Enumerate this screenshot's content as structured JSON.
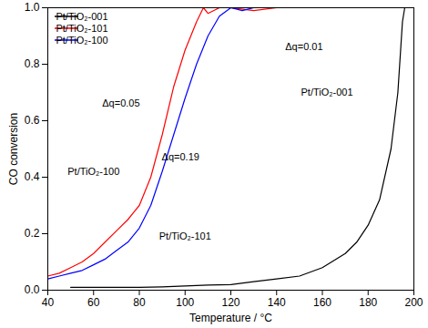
{
  "chart_data": {
    "type": "line",
    "xlabel": "Temperature / °C",
    "ylabel": "CO conversion",
    "xlim": [
      40,
      200
    ],
    "xticks": [
      40,
      60,
      80,
      100,
      120,
      140,
      160,
      180,
      200
    ],
    "ylim": [
      0,
      1
    ],
    "yticks": [
      {
        "value": 0,
        "label": "0.0"
      },
      0.2,
      0.4,
      0.6,
      0.8,
      {
        "value": 1,
        "label": "1.0"
      }
    ],
    "grid": false,
    "legend": "top-left",
    "series": [
      {
        "name": "Pt/TiO₂-001",
        "color": "#000000",
        "x": [
          50,
          60,
          70,
          80,
          90,
          100,
          110,
          120,
          130,
          140,
          150,
          160,
          170,
          175,
          180,
          185,
          190,
          193,
          195,
          196,
          200
        ],
        "values": [
          0.01,
          0.01,
          0.01,
          0.01,
          0.012,
          0.015,
          0.018,
          0.02,
          0.03,
          0.04,
          0.05,
          0.08,
          0.13,
          0.17,
          0.23,
          0.32,
          0.5,
          0.7,
          0.95,
          1.0,
          1.0
        ]
      },
      {
        "name": "Pt/TiO₂-101",
        "color": "#ff0000",
        "x": [
          40,
          45,
          50,
          55,
          60,
          65,
          70,
          75,
          78,
          80,
          85,
          90,
          95,
          100,
          105,
          108,
          110,
          115,
          120,
          130,
          140
        ],
        "values": [
          0.05,
          0.06,
          0.08,
          0.1,
          0.13,
          0.17,
          0.21,
          0.25,
          0.28,
          0.3,
          0.4,
          0.55,
          0.72,
          0.85,
          0.95,
          1.0,
          0.98,
          1.0,
          1.0,
          0.99,
          1.0
        ]
      },
      {
        "name": "Pt/TiO₂-100",
        "color": "#0000ff",
        "x": [
          40,
          45,
          50,
          55,
          60,
          65,
          70,
          75,
          80,
          85,
          90,
          95,
          100,
          105,
          110,
          115,
          120,
          125,
          130,
          135
        ],
        "values": [
          0.04,
          0.05,
          0.06,
          0.07,
          0.09,
          0.11,
          0.14,
          0.17,
          0.22,
          0.3,
          0.42,
          0.55,
          0.68,
          0.8,
          0.9,
          0.97,
          1.0,
          0.99,
          1.0,
          1.0
        ]
      }
    ],
    "annotations": [
      {
        "text": "Δq=0.05",
        "x": 72,
        "y": 0.66
      },
      {
        "text": "Pt/TiO₂-100",
        "x": 60,
        "y": 0.42
      },
      {
        "text": "Δq=0.19",
        "x": 98,
        "y": 0.47
      },
      {
        "text": "Pt/TiO₂-101",
        "x": 100,
        "y": 0.19
      },
      {
        "text": "Δq=0.01",
        "x": 152,
        "y": 0.86
      },
      {
        "text": "Pt/TiO₂-001",
        "x": 162,
        "y": 0.7
      }
    ]
  }
}
